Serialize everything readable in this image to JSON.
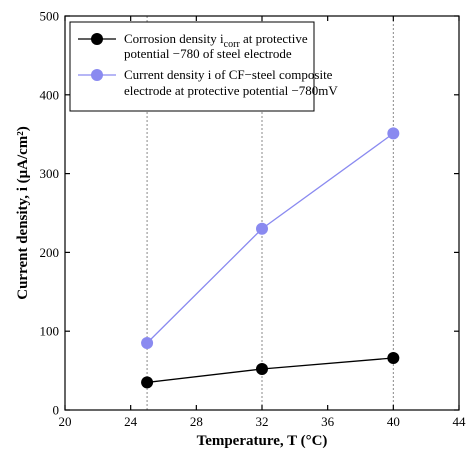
{
  "chart_data": {
    "type": "line",
    "title": "",
    "xlabel": "Temperature, T (°C)",
    "ylabel": "Current density, i (μA/cm²)",
    "xlim": [
      20,
      44
    ],
    "ylim": [
      0,
      500
    ],
    "xticks": [
      20,
      24,
      28,
      32,
      36,
      40,
      44
    ],
    "yticks": [
      0,
      100,
      200,
      300,
      400,
      500
    ],
    "vertical_grid_at": [
      25,
      32,
      40
    ],
    "legend_position": "top-left",
    "series": [
      {
        "name": "Corrosion density i_corr at protective potential −780 of steel electrode",
        "legend_lines": [
          "Corrosion density i",
          "corr",
          " at protective",
          "potential −780 of steel electrode"
        ],
        "color": "#000000",
        "x": [
          25,
          32,
          40
        ],
        "y": [
          35,
          52,
          66
        ]
      },
      {
        "name": "Current density i of CF−steel composite electrode at protective potential −780mV",
        "legend_lines": [
          "Current density i of CF−steel composite",
          "electrode at protective potential −780mV"
        ],
        "color": "#8a8af0",
        "x": [
          25,
          32,
          40
        ],
        "y": [
          85,
          230,
          351
        ]
      }
    ]
  }
}
